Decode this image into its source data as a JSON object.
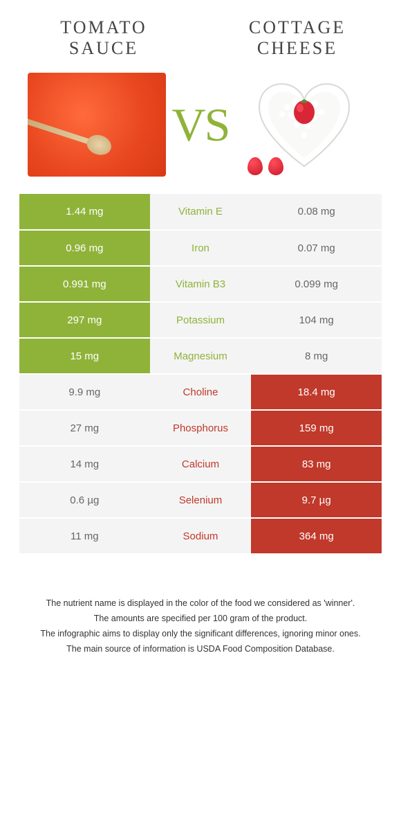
{
  "header": {
    "left_title": "TOMATO SAUCE",
    "right_title": "COTTAGE CHEESE",
    "vs_text": "VS"
  },
  "colors": {
    "left_winner_bg": "#8fb339",
    "right_winner_bg": "#c0392b",
    "loser_bg": "#f4f4f4",
    "loser_text": "#666666",
    "nutrient_left_color": "#8fb339",
    "nutrient_right_color": "#c0392b",
    "background": "#ffffff",
    "title_color": "#444444"
  },
  "typography": {
    "title_fontsize": 26,
    "title_letterspacing": 3,
    "vs_fontsize": 68,
    "cell_fontsize": 15,
    "footnote_fontsize": 12.5
  },
  "rows": [
    {
      "nutrient": "Vitamin E",
      "left": "1.44 mg",
      "right": "0.08 mg",
      "winner": "left"
    },
    {
      "nutrient": "Iron",
      "left": "0.96 mg",
      "right": "0.07 mg",
      "winner": "left"
    },
    {
      "nutrient": "Vitamin B3",
      "left": "0.991 mg",
      "right": "0.099 mg",
      "winner": "left"
    },
    {
      "nutrient": "Potassium",
      "left": "297 mg",
      "right": "104 mg",
      "winner": "left"
    },
    {
      "nutrient": "Magnesium",
      "left": "15 mg",
      "right": "8 mg",
      "winner": "left"
    },
    {
      "nutrient": "Choline",
      "left": "9.9 mg",
      "right": "18.4 mg",
      "winner": "right"
    },
    {
      "nutrient": "Phosphorus",
      "left": "27 mg",
      "right": "159 mg",
      "winner": "right"
    },
    {
      "nutrient": "Calcium",
      "left": "14 mg",
      "right": "83 mg",
      "winner": "right"
    },
    {
      "nutrient": "Selenium",
      "left": "0.6 µg",
      "right": "9.7 µg",
      "winner": "right"
    },
    {
      "nutrient": "Sodium",
      "left": "11 mg",
      "right": "364 mg",
      "winner": "right"
    }
  ],
  "footnotes": [
    "The nutrient name is displayed in the color of the food we considered as 'winner'.",
    "The amounts are specified per 100 gram of the product.",
    "The infographic aims to display only the significant differences, ignoring minor ones.",
    "The main source of information is USDA Food Composition Database."
  ]
}
